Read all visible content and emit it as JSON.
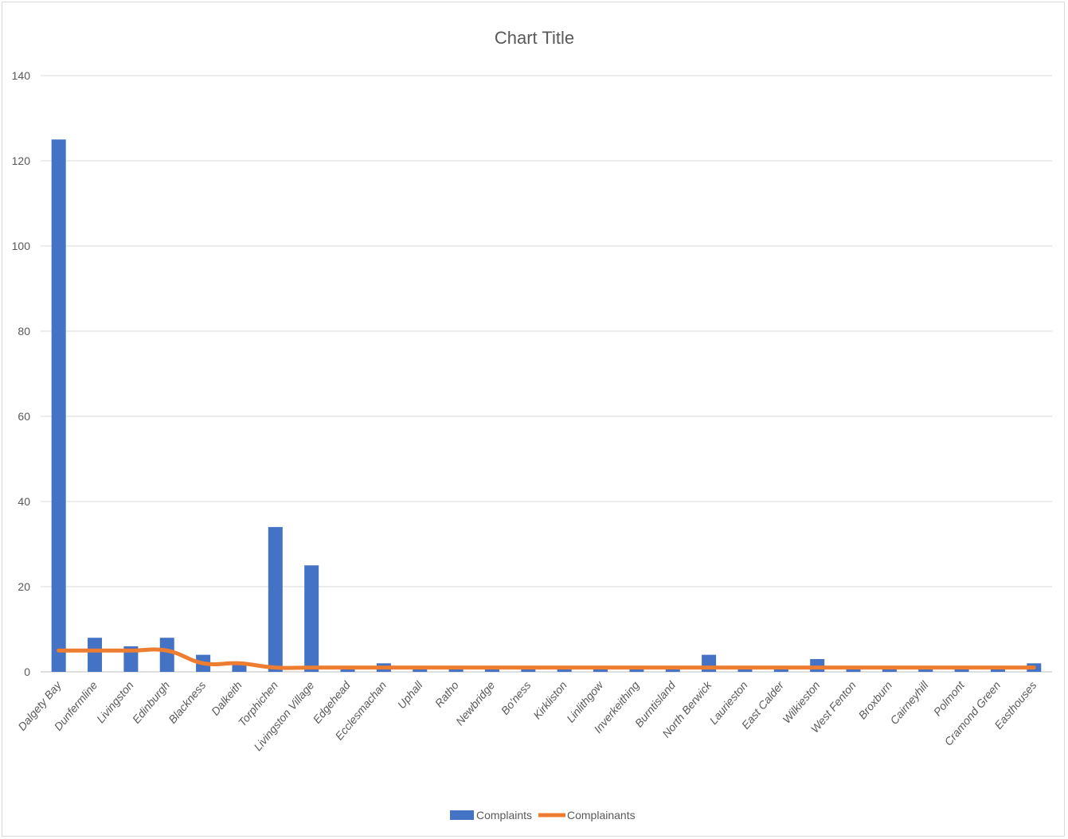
{
  "chart_data": {
    "type": "bar",
    "title": "Chart Title",
    "categories": [
      "Dalgety Bay",
      "Dunfermline",
      "Livingston",
      "Edinburgh",
      "Blackness",
      "Dalkeith",
      "Torphichen",
      "Livingston Village",
      "Edgehead",
      "Ecclesmachan",
      "Uphall",
      "Ratho",
      "Newbridge",
      "Bo'ness",
      "Kirkliston",
      "Linlithgow",
      "Inverkeithing",
      "Burntisland",
      "North Berwick",
      "Laurieston",
      "East Calder",
      "Wilkieston",
      "West Fenton",
      "Broxburn",
      "Cairneyhill",
      "Polmont",
      "Cramond Green",
      "Easthouses"
    ],
    "series": [
      {
        "name": "Complaints",
        "kind": "bar",
        "color": "#4472c4",
        "values": [
          125,
          8,
          6,
          8,
          4,
          2,
          34,
          25,
          1,
          2,
          1,
          1,
          1,
          1,
          1,
          1,
          1,
          1,
          4,
          1,
          1,
          3,
          1,
          1,
          1,
          1,
          1,
          2
        ]
      },
      {
        "name": "Complainants",
        "kind": "line",
        "color": "#ed7d31",
        "values": [
          5,
          5,
          5,
          5,
          2,
          2,
          1,
          1,
          1,
          1,
          1,
          1,
          1,
          1,
          1,
          1,
          1,
          1,
          1,
          1,
          1,
          1,
          1,
          1,
          1,
          1,
          1,
          1
        ]
      }
    ],
    "ylim": [
      0,
      140
    ],
    "yticks": [
      0,
      20,
      40,
      60,
      80,
      100,
      120,
      140
    ],
    "grid": true,
    "legend_position": "bottom"
  }
}
